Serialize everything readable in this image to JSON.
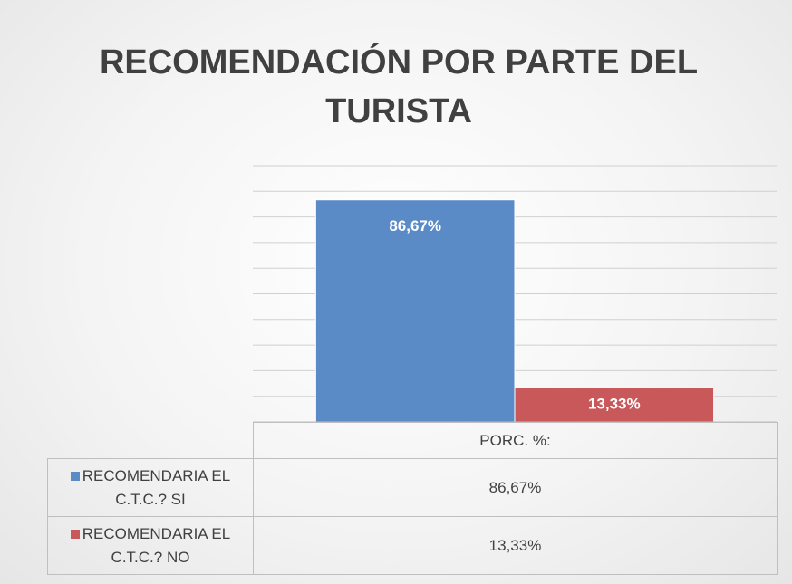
{
  "chart_data": {
    "type": "bar",
    "title": "RECOMENDACIÓN POR PARTE DEL TURISTA",
    "categories": [
      "PORC. %:"
    ],
    "series": [
      {
        "name": "RECOMENDARIA EL C.T.C.? SI",
        "color": "#5b8bc6",
        "values": [
          86.67
        ],
        "value_labels": [
          "86,67%"
        ]
      },
      {
        "name": "RECOMENDARIA EL C.T.C.? NO",
        "color": "#c9585a",
        "values": [
          13.33
        ],
        "value_labels": [
          "13,33%"
        ]
      }
    ],
    "ylim": [
      0,
      100
    ],
    "yticks": [
      0,
      10,
      20,
      30,
      40,
      50,
      60,
      70,
      80,
      90,
      100
    ],
    "grid": true
  }
}
